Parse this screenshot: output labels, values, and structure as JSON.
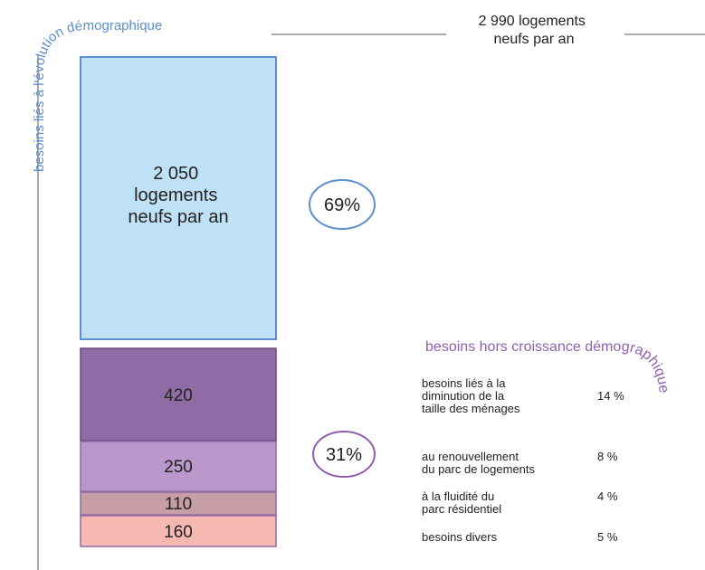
{
  "left_title": "besoins liés à l'évolution démographique",
  "total": [
    "2 990 logements",
    "neufs par an"
  ],
  "main_block": [
    "2 050",
    "logements",
    "neufs par an"
  ],
  "main_share": "69%",
  "segments": [
    "420",
    "250",
    "110",
    "160"
  ],
  "other_share": "31%",
  "right_title": "besoins hors croissance démographique",
  "items": [
    {
      "label": [
        "besoins liés à la",
        "diminution de la",
        "taille des ménages"
      ],
      "share": "14 %"
    },
    {
      "label": [
        "au renouvellement",
        "du parc de logements"
      ],
      "share": "8 %"
    },
    {
      "label": [
        "à la fluidité du",
        "parc résidentiel"
      ],
      "share": "4 %"
    },
    {
      "label": [
        "besoins divers"
      ],
      "share": "5 %"
    }
  ]
}
